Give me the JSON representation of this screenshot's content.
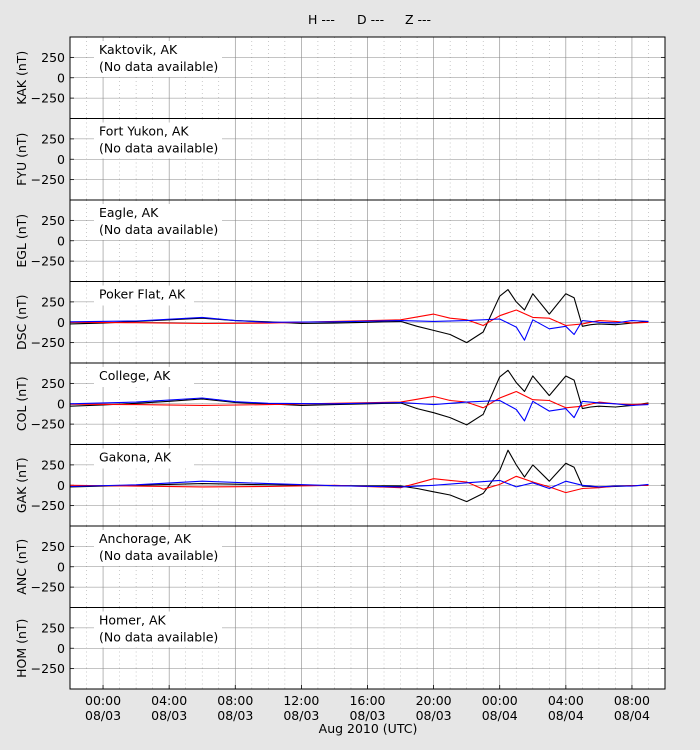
{
  "legend": [
    {
      "label": "H ---",
      "color": "#000000"
    },
    {
      "label": "D ---",
      "color": "#ff0000"
    },
    {
      "label": "Z ---",
      "color": "#0000ff"
    }
  ],
  "colors": {
    "H": "#000000",
    "D": "#ff0000",
    "Z": "#0000ff",
    "figure_bg": "#e6e6e6",
    "panel_bg": "#ffffff"
  },
  "xlabel": "Aug 2010 (UTC)",
  "x_ticks": [
    {
      "time": "00:00",
      "date": "08/03",
      "hour": 0
    },
    {
      "time": "04:00",
      "date": "08/03",
      "hour": 4
    },
    {
      "time": "08:00",
      "date": "08/03",
      "hour": 8
    },
    {
      "time": "12:00",
      "date": "08/03",
      "hour": 12
    },
    {
      "time": "16:00",
      "date": "08/03",
      "hour": 16
    },
    {
      "time": "20:00",
      "date": "08/03",
      "hour": 20
    },
    {
      "time": "00:00",
      "date": "08/04",
      "hour": 24
    },
    {
      "time": "04:00",
      "date": "08/04",
      "hour": 28
    },
    {
      "time": "08:00",
      "date": "08/04",
      "hour": 32
    }
  ],
  "chart_data": {
    "type": "line",
    "x_unit": "hours from 2010-08-03 00:00 UTC",
    "xlim": [
      -2,
      34
    ],
    "ylim": [
      -500,
      500
    ],
    "y_ticks": [
      -250,
      0,
      250
    ],
    "grid": true,
    "legend_position": "top-center",
    "panels": [
      {
        "station": "Kaktovik, AK",
        "ylabel": "KAK (nT)",
        "note": "(No data available)",
        "series": []
      },
      {
        "station": "Fort Yukon, AK",
        "ylabel": "FYU (nT)",
        "note": "(No data available)",
        "series": []
      },
      {
        "station": "Eagle, AK",
        "ylabel": "EGL (nT)",
        "note": "(No data available)",
        "series": []
      },
      {
        "station": "Poker Flat, AK",
        "ylabel": "DSC (nT)",
        "note": "",
        "series": [
          {
            "name": "H",
            "x": [
              -2,
              0,
              2,
              4,
              6,
              8,
              10,
              12,
              14,
              16,
              18,
              19,
              20,
              21,
              22,
              23,
              24,
              24.5,
              25,
              25.5,
              26,
              27,
              28,
              28.5,
              29,
              29.5,
              30,
              31,
              32,
              33
            ],
            "y": [
              -20,
              -10,
              10,
              30,
              50,
              20,
              5,
              -15,
              -10,
              0,
              10,
              -50,
              -100,
              -150,
              -250,
              -120,
              320,
              400,
              250,
              150,
              350,
              100,
              350,
              300,
              -50,
              -30,
              -20,
              -30,
              -10,
              10
            ]
          },
          {
            "name": "D",
            "x": [
              -2,
              2,
              6,
              10,
              14,
              18,
              20,
              21,
              22,
              23,
              24,
              25,
              26,
              27,
              28,
              29,
              30,
              31,
              32,
              33
            ],
            "y": [
              0,
              -5,
              -15,
              -10,
              10,
              30,
              100,
              50,
              30,
              -40,
              80,
              150,
              60,
              50,
              -40,
              -20,
              20,
              10,
              -10,
              0
            ]
          },
          {
            "name": "Z",
            "x": [
              -2,
              2,
              6,
              8,
              10,
              14,
              18,
              20,
              22,
              24,
              25,
              25.5,
              26,
              27,
              28,
              28.5,
              29,
              30,
              31,
              32,
              33
            ],
            "y": [
              5,
              15,
              60,
              20,
              0,
              5,
              20,
              10,
              20,
              40,
              -60,
              -220,
              30,
              -80,
              -50,
              -150,
              20,
              0,
              -10,
              20,
              10
            ]
          }
        ]
      },
      {
        "station": "College, AK",
        "ylabel": "COL (nT)",
        "note": "",
        "series": [
          {
            "name": "H",
            "x": [
              -2,
              0,
              2,
              4,
              6,
              8,
              10,
              12,
              14,
              16,
              18,
              19,
              20,
              21,
              22,
              23,
              24,
              24.5,
              25,
              25.5,
              26,
              27,
              28,
              28.5,
              29,
              29.5,
              30,
              31,
              32,
              33
            ],
            "y": [
              -30,
              -15,
              5,
              30,
              60,
              15,
              0,
              -20,
              -10,
              0,
              10,
              -60,
              -110,
              -170,
              -260,
              -130,
              330,
              410,
              260,
              150,
              340,
              100,
              340,
              290,
              -60,
              -40,
              -30,
              -40,
              -20,
              10
            ]
          },
          {
            "name": "D",
            "x": [
              -2,
              2,
              6,
              10,
              14,
              18,
              20,
              21,
              22,
              23,
              24,
              25,
              26,
              27,
              28,
              29,
              30,
              31,
              32,
              33
            ],
            "y": [
              -5,
              -10,
              -20,
              -10,
              5,
              20,
              90,
              40,
              20,
              -50,
              70,
              150,
              50,
              40,
              -50,
              -30,
              20,
              0,
              -10,
              0
            ]
          },
          {
            "name": "Z",
            "x": [
              -2,
              2,
              6,
              8,
              10,
              14,
              18,
              20,
              22,
              24,
              25,
              25.5,
              26,
              27,
              28,
              28.5,
              29,
              30,
              31,
              32,
              33
            ],
            "y": [
              0,
              20,
              70,
              25,
              5,
              0,
              15,
              -10,
              20,
              40,
              -70,
              -210,
              30,
              -90,
              -60,
              -170,
              30,
              10,
              0,
              -20,
              -10
            ]
          }
        ]
      },
      {
        "station": "Gakona, AK",
        "ylabel": "GAK (nT)",
        "note": "",
        "series": [
          {
            "name": "H",
            "x": [
              -2,
              2,
              6,
              10,
              14,
              18,
              19,
              20,
              21,
              22,
              23,
              24,
              24.5,
              25,
              25.5,
              26,
              27,
              28,
              28.5,
              29,
              30,
              31,
              32,
              33
            ],
            "y": [
              -20,
              0,
              20,
              5,
              -5,
              -10,
              -40,
              -80,
              -120,
              -200,
              -100,
              180,
              430,
              250,
              100,
              250,
              50,
              270,
              220,
              -10,
              -20,
              -15,
              -5,
              0
            ]
          },
          {
            "name": "D",
            "x": [
              -2,
              2,
              6,
              10,
              14,
              18,
              20,
              21,
              22,
              23,
              24,
              25,
              26,
              27,
              28,
              29,
              30,
              31,
              32,
              33
            ],
            "y": [
              0,
              -10,
              -20,
              -15,
              0,
              -30,
              80,
              60,
              40,
              -50,
              10,
              110,
              40,
              -20,
              -90,
              -40,
              -30,
              -10,
              -5,
              0
            ]
          },
          {
            "name": "Z",
            "x": [
              -2,
              2,
              6,
              10,
              14,
              18,
              20,
              22,
              24,
              25,
              26,
              27,
              28,
              29,
              30,
              31,
              32,
              33
            ],
            "y": [
              -15,
              5,
              50,
              20,
              -5,
              -20,
              0,
              30,
              60,
              -20,
              30,
              -40,
              50,
              0,
              -20,
              -10,
              -10,
              10
            ]
          }
        ]
      },
      {
        "station": "Anchorage, AK",
        "ylabel": "ANC (nT)",
        "note": "(No data available)",
        "series": []
      },
      {
        "station": "Homer, AK",
        "ylabel": "HOM (nT)",
        "note": "(No data available)",
        "series": []
      }
    ]
  }
}
